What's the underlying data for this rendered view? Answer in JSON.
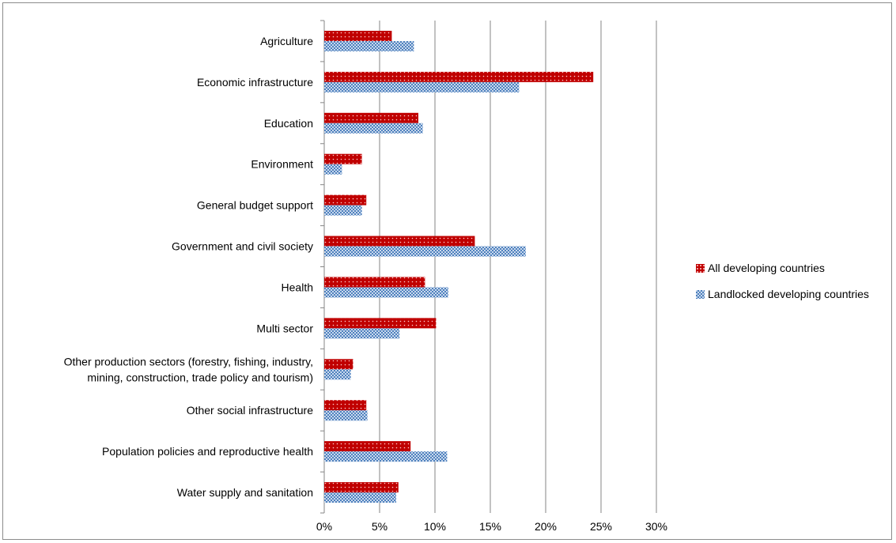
{
  "chart_data": {
    "type": "bar",
    "orientation": "horizontal",
    "categories": [
      "Agriculture",
      "Economic infrastructure",
      "Education",
      "Environment",
      "General budget support",
      "Government and civil society",
      "Health",
      "Multi sector",
      [
        "Other production sectors (forestry, fishing, industry,",
        "mining, construction, trade policy and tourism)"
      ],
      "Other social infrastructure",
      "Population policies and reproductive health",
      "Water supply and sanitation"
    ],
    "series": [
      {
        "name": "All developing countries",
        "color": "#c00000",
        "pattern": "dotted",
        "values": [
          6.1,
          24.3,
          8.5,
          3.4,
          3.8,
          13.6,
          9.1,
          10.1,
          2.6,
          3.8,
          7.8,
          6.7
        ]
      },
      {
        "name": "Landlocked developing countries",
        "color": "#4f81bd",
        "pattern": "checker",
        "values": [
          8.1,
          17.6,
          8.9,
          1.6,
          3.4,
          18.2,
          11.2,
          6.8,
          2.4,
          3.9,
          11.1,
          6.5
        ]
      }
    ],
    "xlim": [
      0,
      30
    ],
    "xticks": [
      "0%",
      "5%",
      "10%",
      "15%",
      "20%",
      "25%",
      "30%"
    ],
    "grid": true,
    "legend": "right",
    "title": "",
    "xlabel": "",
    "ylabel": ""
  }
}
